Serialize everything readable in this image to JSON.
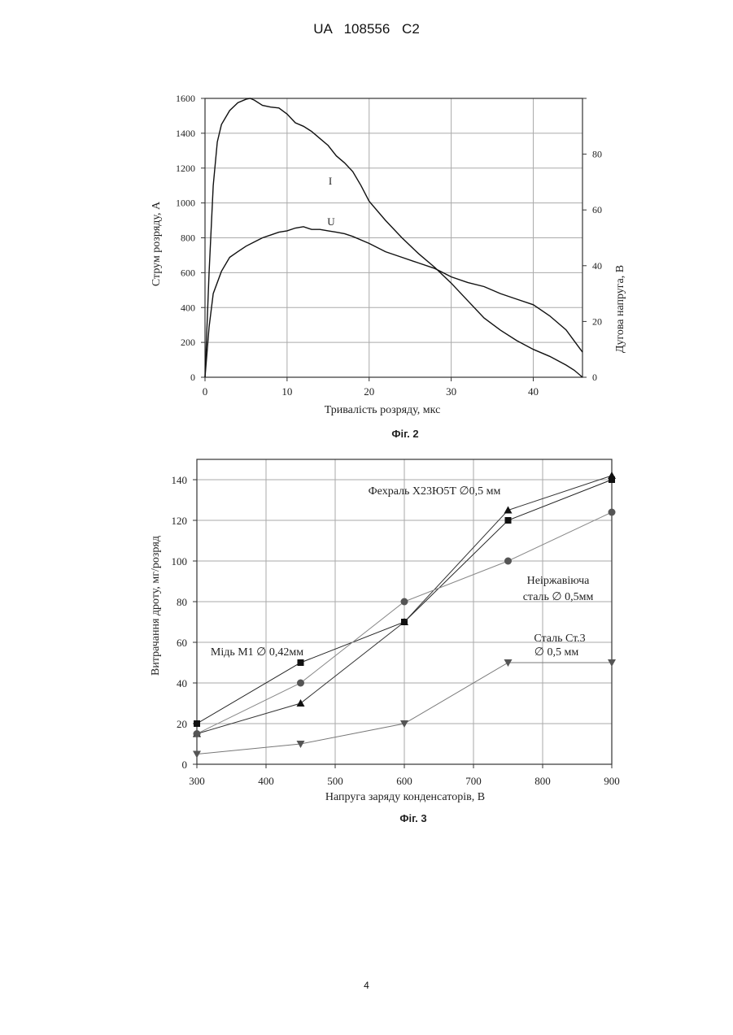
{
  "header": "UA 108556 C2",
  "page_number": "4",
  "chart_data": [
    {
      "type": "line",
      "caption": "Фіг. 2",
      "xlabel": "Тривалість розряду, мкс",
      "ylabel": "Струм розряду, А",
      "y2label": "Дугова напруга, В",
      "xlim": [
        0,
        46
      ],
      "ylim": [
        0,
        1600
      ],
      "y2lim": [
        0,
        100
      ],
      "xticks": [
        0,
        10,
        20,
        30,
        40
      ],
      "yticks": [
        0,
        200,
        400,
        600,
        800,
        1000,
        1200,
        1400,
        1600
      ],
      "y2ticks": [
        0,
        20,
        40,
        60,
        80
      ],
      "grid": true,
      "series": [
        {
          "name": "I",
          "axis": "left",
          "x": [
            0,
            0.5,
            1,
            1.5,
            2,
            3,
            4,
            5,
            5.5,
            6,
            7,
            8,
            9,
            10,
            11,
            12,
            13,
            14,
            15,
            16,
            17,
            18,
            19,
            20,
            22,
            24,
            26,
            28,
            30,
            32,
            34,
            36,
            38,
            40,
            42,
            44,
            45,
            46
          ],
          "y": [
            0,
            600,
            1100,
            1350,
            1450,
            1530,
            1575,
            1595,
            1600,
            1590,
            1560,
            1550,
            1545,
            1510,
            1460,
            1440,
            1410,
            1370,
            1330,
            1270,
            1230,
            1180,
            1100,
            1010,
            900,
            800,
            710,
            630,
            540,
            440,
            340,
            270,
            210,
            160,
            120,
            70,
            40,
            0
          ]
        },
        {
          "name": "U",
          "axis": "right",
          "x": [
            0,
            0.5,
            1,
            2,
            3,
            4,
            5,
            6,
            7,
            8,
            9,
            10,
            11,
            12,
            13,
            14,
            15,
            16,
            17,
            18,
            20,
            22,
            24,
            26,
            28,
            30,
            32,
            34,
            36,
            38,
            40,
            42,
            44,
            45,
            46
          ],
          "y": [
            0,
            18,
            30,
            38,
            43,
            45,
            47,
            48.5,
            50,
            51,
            52,
            52.5,
            53.5,
            54,
            53,
            53,
            52.5,
            52,
            51.5,
            50.5,
            48,
            45,
            43,
            41,
            39,
            36,
            34,
            32.5,
            30,
            28,
            26,
            22,
            17,
            13,
            9
          ]
        }
      ],
      "annotations": [
        "I",
        "U"
      ]
    },
    {
      "type": "line",
      "caption": "Фіг. 3",
      "xlabel": "Напруга заряду конденсаторів, В",
      "ylabel": "Витрачання дроту, мг/розряд",
      "xlim": [
        300,
        900
      ],
      "ylim": [
        0,
        150
      ],
      "xticks": [
        300,
        400,
        500,
        600,
        700,
        800,
        900
      ],
      "yticks": [
        0,
        20,
        40,
        60,
        80,
        100,
        120,
        140
      ],
      "grid": true,
      "categories": [
        300,
        450,
        600,
        750,
        900
      ],
      "series": [
        {
          "marker": "square",
          "values": [
            20,
            50,
            70,
            120,
            140
          ]
        },
        {
          "marker": "triangle-up",
          "values": [
            15,
            30,
            70,
            125,
            142
          ]
        },
        {
          "marker": "circle",
          "values": [
            15,
            40,
            80,
            100,
            124
          ]
        },
        {
          "marker": "triangle-down",
          "values": [
            5,
            10,
            20,
            50,
            50
          ]
        }
      ],
      "annotations": [
        {
          "text": "Фехраль Х23Ю5Т ∅0,5 мм"
        },
        {
          "text": "Неіржавіюча",
          "text2": "сталь ∅ 0,5мм"
        },
        {
          "text": "Мідь М1 ∅ 0,42мм"
        },
        {
          "text": "Сталь Ст.3",
          "text2": "∅ 0,5 мм"
        }
      ]
    }
  ]
}
